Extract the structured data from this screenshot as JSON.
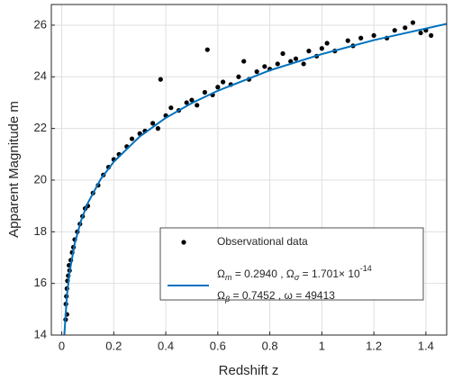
{
  "chart_data": {
    "type": "scatter",
    "x_label": "Redshift z",
    "y_label": "Apparent Magnitude m",
    "xlim": [
      -0.04,
      1.48
    ],
    "ylim": [
      14,
      26.8
    ],
    "xticks": [
      0,
      0.2,
      0.4,
      0.6,
      0.8,
      1,
      1.2,
      1.4
    ],
    "yticks": [
      14,
      16,
      18,
      20,
      22,
      24,
      26
    ],
    "grid": true,
    "legend": "lower right",
    "series": [
      {
        "name": "Observational data",
        "kind": "scatter",
        "color": "#000000",
        "x": [
          0.015,
          0.016,
          0.018,
          0.02,
          0.02,
          0.022,
          0.025,
          0.028,
          0.03,
          0.035,
          0.04,
          0.045,
          0.05,
          0.06,
          0.07,
          0.08,
          0.09,
          0.1,
          0.12,
          0.14,
          0.16,
          0.18,
          0.2,
          0.22,
          0.25,
          0.27,
          0.3,
          0.32,
          0.35,
          0.37,
          0.38,
          0.4,
          0.42,
          0.45,
          0.48,
          0.5,
          0.52,
          0.55,
          0.56,
          0.58,
          0.6,
          0.62,
          0.65,
          0.68,
          0.7,
          0.72,
          0.75,
          0.78,
          0.8,
          0.83,
          0.85,
          0.88,
          0.9,
          0.93,
          0.95,
          0.98,
          1.0,
          1.02,
          1.05,
          1.1,
          1.12,
          1.15,
          1.2,
          1.25,
          1.28,
          1.32,
          1.35,
          1.38,
          1.4,
          1.42
        ],
        "values": [
          14.6,
          15.2,
          15.5,
          14.8,
          15.8,
          16.1,
          16.3,
          16.7,
          16.5,
          16.9,
          17.2,
          17.4,
          17.7,
          18.0,
          18.3,
          18.6,
          18.9,
          19.0,
          19.5,
          19.8,
          20.2,
          20.5,
          20.8,
          21.0,
          21.3,
          21.6,
          21.8,
          21.9,
          22.2,
          22.0,
          23.9,
          22.5,
          22.8,
          22.7,
          23.0,
          23.1,
          22.9,
          23.4,
          25.05,
          23.3,
          23.6,
          23.8,
          23.7,
          24.0,
          24.6,
          23.9,
          24.2,
          24.4,
          24.3,
          24.5,
          24.9,
          24.6,
          24.7,
          24.5,
          25.0,
          24.8,
          25.1,
          25.3,
          25.0,
          25.4,
          25.2,
          25.5,
          25.6,
          25.5,
          25.8,
          25.9,
          26.1,
          25.7,
          25.8,
          25.6
        ]
      },
      {
        "name": [
          [
            {
              "text": "Ω"
            },
            {
              "text": "m",
              "shift": "sub"
            },
            {
              "text": " = 0.2940 , "
            },
            {
              "text": "Ω"
            },
            {
              "text": "σ",
              "shift": "sub"
            },
            {
              "text": " = 1.701× 10"
            },
            {
              "text": "-14",
              "shift": "sup"
            }
          ],
          [
            {
              "text": "Ω"
            },
            {
              "text": "β",
              "shift": "sub"
            },
            {
              "text": " = 0.7452 , ω = 49413"
            }
          ]
        ],
        "kind": "line",
        "color": "#0072BD",
        "x": [
          0.01,
          0.02,
          0.03,
          0.05,
          0.075,
          0.1,
          0.15,
          0.2,
          0.3,
          0.4,
          0.5,
          0.6,
          0.8,
          1.0,
          1.2,
          1.48
        ],
        "values": [
          14.01,
          15.53,
          16.42,
          17.55,
          18.45,
          19.11,
          20.04,
          20.71,
          21.69,
          22.41,
          22.98,
          23.46,
          24.25,
          24.88,
          25.42,
          26.05
        ]
      }
    ]
  }
}
